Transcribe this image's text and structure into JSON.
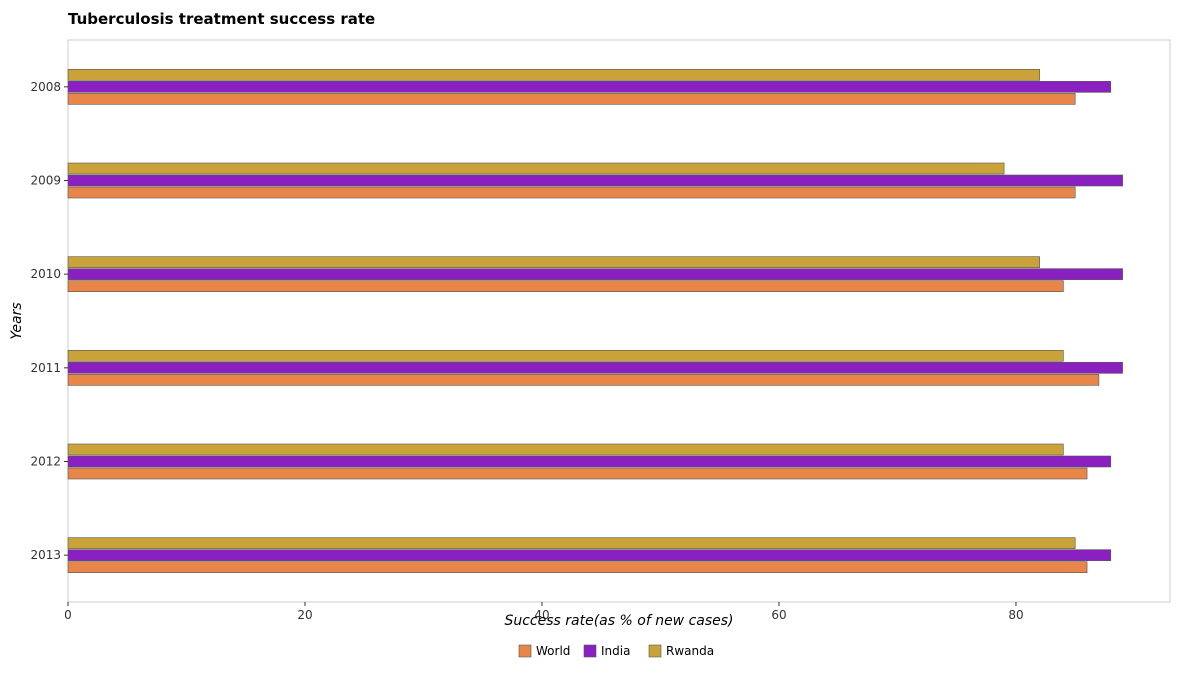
{
  "chart_data": {
    "type": "bar",
    "orientation": "horizontal",
    "title": "Tuberculosis treatment success rate",
    "xlabel": "Success rate(as % of new cases)",
    "ylabel": "Years",
    "categories": [
      "2008",
      "2009",
      "2010",
      "2011",
      "2012",
      "2013"
    ],
    "series": [
      {
        "name": "World",
        "color": "#e8864a",
        "values": [
          85,
          85,
          84,
          87,
          86,
          86
        ]
      },
      {
        "name": "India",
        "color": "#8b20c0",
        "values": [
          88,
          89,
          89,
          89,
          88,
          88
        ]
      },
      {
        "name": "Rwanda",
        "color": "#c9a23a",
        "values": [
          82,
          79,
          82,
          84,
          84,
          85
        ]
      }
    ],
    "xlim": [
      0,
      93
    ],
    "xticks": [
      0,
      20,
      40,
      60,
      80
    ],
    "grid": false,
    "legend": "bottom-center"
  }
}
